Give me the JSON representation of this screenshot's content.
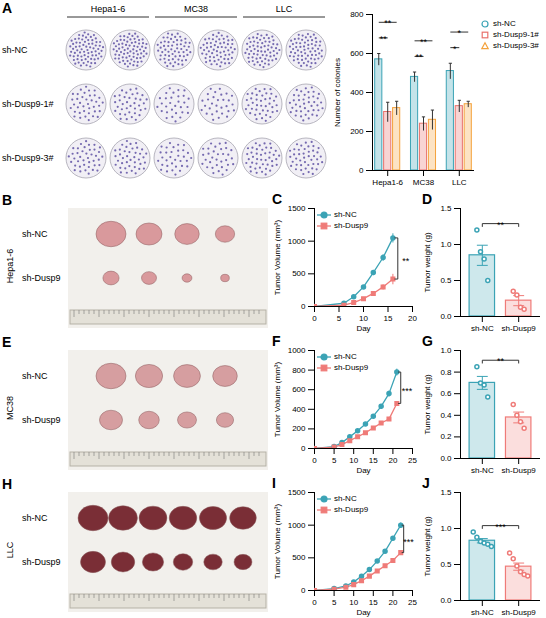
{
  "chart_data": [
    {
      "panel": "A",
      "type": "bar",
      "ylabel": "Number of colonies",
      "categories": [
        "Hepa1-6",
        "MC38",
        "LLC"
      ],
      "series": [
        {
          "name": "sh-NC",
          "color": "#3ba3b5",
          "marker": "circle",
          "values": [
            570,
            480,
            510
          ],
          "errors": [
            30,
            25,
            40
          ]
        },
        {
          "name": "sh-Dusp9-1#",
          "color": "#e9726c",
          "marker": "square",
          "values": [
            300,
            240,
            330
          ],
          "errors": [
            50,
            35,
            30
          ]
        },
        {
          "name": "sh-Dusp9-3#",
          "color": "#f4a23c",
          "marker": "triangle",
          "values": [
            320,
            260,
            340
          ],
          "errors": [
            35,
            50,
            15
          ]
        }
      ],
      "ylim": [
        0,
        800
      ],
      "yticks": [
        0,
        200,
        400,
        600,
        800
      ],
      "legend": "right",
      "significance": [
        [
          "**",
          "**"
        ],
        [
          "**",
          "**"
        ],
        [
          "*",
          "*"
        ]
      ]
    },
    {
      "panel": "C",
      "type": "line",
      "xlabel": "Day",
      "ylabel": "Tumor Volume (mm³)",
      "x": [
        0,
        6,
        8,
        10,
        12,
        14,
        16
      ],
      "series": [
        {
          "name": "sh-NC",
          "color": "#3ba3b5",
          "marker": "circle",
          "values": [
            0,
            50,
            150,
            300,
            520,
            750,
            1050
          ],
          "errors": [
            0,
            5,
            15,
            25,
            40,
            50,
            70
          ]
        },
        {
          "name": "sh-Dusp9",
          "color": "#ef7b78",
          "marker": "square",
          "values": [
            0,
            20,
            60,
            120,
            200,
            300,
            420
          ],
          "errors": [
            0,
            3,
            8,
            15,
            25,
            40,
            80
          ]
        }
      ],
      "xlim": [
        0,
        20
      ],
      "xticks": [
        0,
        5,
        10,
        15,
        20
      ],
      "ylim": [
        0,
        1500
      ],
      "yticks": [
        0,
        500,
        1000,
        1500
      ],
      "legend": "top-left",
      "significance": "**"
    },
    {
      "panel": "D",
      "type": "bar",
      "ylabel": "Tumor weight (g)",
      "categories": [
        "sh-NC",
        "sh-Dusp9"
      ],
      "values": [
        0.85,
        0.22
      ],
      "errors": [
        0.14,
        0.07
      ],
      "points": [
        [
          1.2,
          0.9,
          0.8,
          0.5
        ],
        [
          0.35,
          0.3,
          0.13,
          0.1
        ]
      ],
      "colors": [
        "#3ba3b5",
        "#ef7b78"
      ],
      "ylim": [
        0,
        1.5
      ],
      "yticks": [
        {
          "value": 0,
          "label": "0.0"
        },
        0.5,
        {
          "value": 1,
          "label": "1.0"
        },
        1.5
      ],
      "significance": "**"
    },
    {
      "panel": "F",
      "type": "line",
      "xlabel": "Day",
      "ylabel": "Tumor Volume (mm³)",
      "x": [
        0,
        5,
        7,
        9,
        11,
        13,
        15,
        17,
        19,
        21
      ],
      "series": [
        {
          "name": "sh-NC",
          "color": "#3ba3b5",
          "marker": "circle",
          "values": [
            0,
            20,
            60,
            120,
            180,
            250,
            330,
            430,
            560,
            780
          ],
          "errors": [
            0,
            3,
            6,
            10,
            12,
            15,
            20,
            25,
            30,
            35
          ]
        },
        {
          "name": "sh-Dusp9",
          "color": "#ef7b78",
          "marker": "square",
          "values": [
            0,
            15,
            40,
            80,
            120,
            160,
            210,
            260,
            300,
            460
          ],
          "errors": [
            0,
            2,
            4,
            6,
            8,
            10,
            12,
            15,
            15,
            20
          ]
        }
      ],
      "xlim": [
        0,
        25
      ],
      "xticks": [
        0,
        5,
        10,
        15,
        20,
        25
      ],
      "ylim": [
        0,
        1000
      ],
      "yticks": [
        0,
        200,
        400,
        600,
        800,
        1000
      ],
      "legend": "top-left",
      "significance": "***"
    },
    {
      "panel": "G",
      "type": "bar",
      "ylabel": "Tumor weight (g)",
      "categories": [
        "sh-NC",
        "sh-Dusp9"
      ],
      "values": [
        0.7,
        0.38
      ],
      "errors": [
        0.06,
        0.05
      ],
      "points": [
        [
          0.85,
          0.7,
          0.68,
          0.57
        ],
        [
          0.5,
          0.4,
          0.34,
          0.28
        ]
      ],
      "colors": [
        "#3ba3b5",
        "#ef7b78"
      ],
      "ylim": [
        0,
        1
      ],
      "yticks": [
        {
          "value": 0,
          "label": "0.0"
        },
        0.2,
        0.4,
        0.6,
        0.8,
        {
          "value": 1,
          "label": "1.0"
        }
      ],
      "significance": "**"
    },
    {
      "panel": "I",
      "type": "line",
      "xlabel": "Day",
      "ylabel": "Tumor Volume (mm³)",
      "x": [
        0,
        5,
        8,
        10,
        12,
        14,
        16,
        18,
        20,
        22
      ],
      "series": [
        {
          "name": "sh-NC",
          "color": "#3ba3b5",
          "marker": "circle",
          "values": [
            0,
            30,
            70,
            130,
            220,
            320,
            450,
            600,
            800,
            1000
          ],
          "errors": [
            0,
            3,
            5,
            8,
            12,
            15,
            20,
            25,
            30,
            40
          ]
        },
        {
          "name": "sh-Dusp9",
          "color": "#ef7b78",
          "marker": "square",
          "values": [
            0,
            20,
            50,
            90,
            150,
            220,
            300,
            380,
            460,
            580
          ],
          "errors": [
            0,
            2,
            4,
            6,
            10,
            12,
            15,
            20,
            25,
            35
          ]
        }
      ],
      "xlim": [
        0,
        25
      ],
      "xticks": [
        0,
        5,
        10,
        15,
        20,
        25
      ],
      "ylim": [
        0,
        1500
      ],
      "yticks": [
        0,
        500,
        1000,
        1500
      ],
      "legend": "top-left",
      "significance": "***"
    },
    {
      "panel": "J",
      "type": "bar",
      "ylabel": "Tumor weight (g)",
      "categories": [
        "sh-NC",
        "sh-Dusp9"
      ],
      "values": [
        0.83,
        0.47
      ],
      "errors": [
        0.03,
        0.05
      ],
      "points": [
        [
          0.95,
          0.88,
          0.82,
          0.8,
          0.78,
          0.75
        ],
        [
          0.66,
          0.58,
          0.48,
          0.4,
          0.36,
          0.34
        ]
      ],
      "colors": [
        "#3ba3b5",
        "#ef7b78"
      ],
      "ylim": [
        0,
        1.5
      ],
      "yticks": [
        {
          "value": 0,
          "label": "0.0"
        },
        0.5,
        {
          "value": 1,
          "label": "1.0"
        },
        1.5
      ],
      "significance": "***"
    }
  ],
  "images": [
    {
      "panel": "A",
      "columns": [
        "Hepa1-6",
        "MC38",
        "LLC"
      ],
      "rows": [
        "sh-NC",
        "sh-Dusp9-1#",
        "sh-Dusp9-3#"
      ]
    },
    {
      "panel": "B",
      "label": "Hepa1-6",
      "rows": [
        "sh-NC",
        "sh-Dusp9"
      ]
    },
    {
      "panel": "E",
      "label": "MC38",
      "rows": [
        "sh-NC",
        "sh-Dusp9"
      ]
    },
    {
      "panel": "H",
      "label": "LLC",
      "rows": [
        "sh-NC",
        "sh-Dusp9"
      ]
    }
  ]
}
